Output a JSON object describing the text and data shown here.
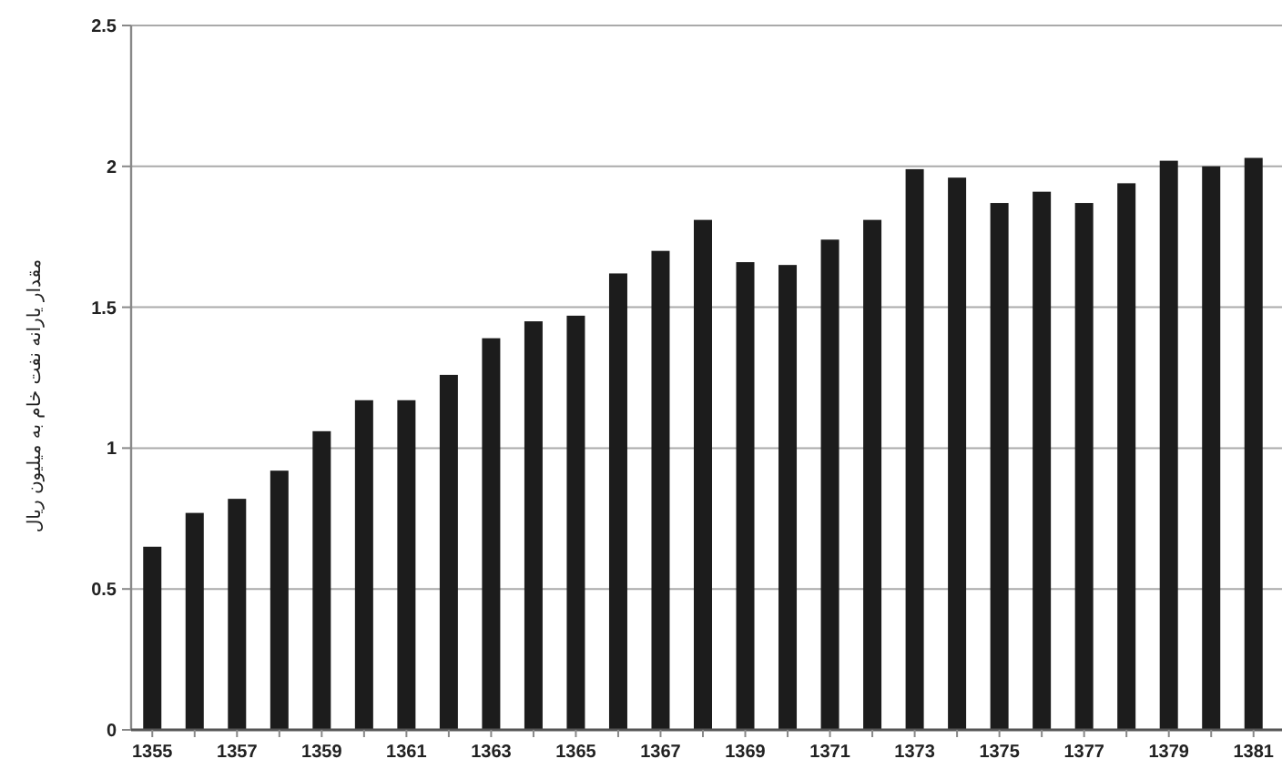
{
  "chart_data": {
    "type": "bar",
    "ylabel": "مقدار یارانه نفت خام به میلیون ریال",
    "categories": [
      "1355",
      null,
      "1357",
      null,
      "1359",
      null,
      "1361",
      null,
      "1363",
      null,
      "1365",
      null,
      "1367",
      null,
      "1369",
      null,
      "1371",
      null,
      "1373",
      null,
      "1375",
      null,
      "1377",
      null,
      "1379",
      null,
      "1381"
    ],
    "values": [
      0.65,
      0.77,
      0.82,
      0.92,
      1.06,
      1.17,
      1.17,
      1.26,
      1.39,
      1.45,
      1.47,
      1.62,
      1.7,
      1.81,
      1.66,
      1.65,
      1.74,
      1.81,
      1.99,
      1.96,
      1.87,
      1.91,
      1.87,
      1.94,
      2.02,
      2.0,
      2.03
    ],
    "color": "#1c1c1c",
    "ylim": [
      0,
      2.5
    ],
    "yticks": [
      0,
      0.5,
      1,
      1.5,
      2,
      2.5
    ],
    "grid": "y"
  }
}
